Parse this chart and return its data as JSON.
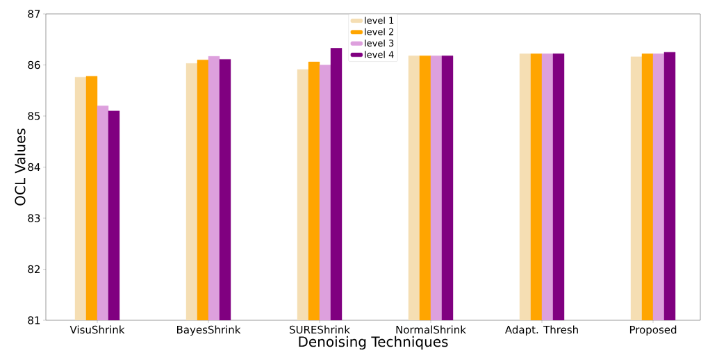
{
  "chart_data": {
    "type": "bar",
    "xlabel": "Denoising Techniques",
    "ylabel": "OCL Values",
    "categories": [
      "VisuShrink",
      "BayesShrink",
      "SUREShrink",
      "NormalShrink",
      "Adapt. Thresh",
      "Proposed"
    ],
    "series": [
      {
        "name": "level 1",
        "color": "#f5deb3",
        "values": [
          85.76,
          86.03,
          85.91,
          86.18,
          86.22,
          86.16
        ]
      },
      {
        "name": "level 2",
        "color": "#ffa500",
        "values": [
          85.78,
          86.1,
          86.06,
          86.18,
          86.22,
          86.22
        ]
      },
      {
        "name": "level 3",
        "color": "#dda0dd",
        "values": [
          85.2,
          86.17,
          86.0,
          86.18,
          86.22,
          86.22
        ]
      },
      {
        "name": "level 4",
        "color": "#800080",
        "values": [
          85.1,
          86.11,
          86.33,
          86.18,
          86.22,
          86.25
        ]
      }
    ],
    "ylim": [
      81,
      87
    ],
    "yticks": [
      81,
      82,
      83,
      84,
      85,
      86,
      87
    ],
    "legend": "top",
    "grid": false
  }
}
